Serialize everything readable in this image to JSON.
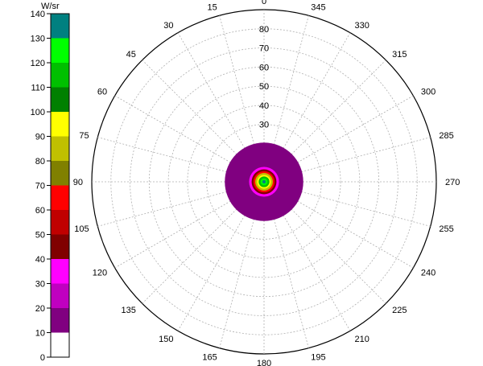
{
  "chart_data": {
    "type": "heatmap",
    "projection": "polar",
    "unit_label": "W/sr",
    "colorbar": {
      "ticks": [
        0,
        10,
        20,
        30,
        40,
        50,
        60,
        70,
        80,
        90,
        100,
        110,
        120,
        130,
        140
      ],
      "bands": [
        {
          "from": 0,
          "to": 10,
          "color": "#ffffff"
        },
        {
          "from": 10,
          "to": 20,
          "color": "#800080"
        },
        {
          "from": 20,
          "to": 30,
          "color": "#c000c0"
        },
        {
          "from": 30,
          "to": 40,
          "color": "#ff00ff"
        },
        {
          "from": 40,
          "to": 50,
          "color": "#800000"
        },
        {
          "from": 50,
          "to": 60,
          "color": "#c00000"
        },
        {
          "from": 60,
          "to": 70,
          "color": "#ff0000"
        },
        {
          "from": 70,
          "to": 80,
          "color": "#808000"
        },
        {
          "from": 80,
          "to": 90,
          "color": "#c0c000"
        },
        {
          "from": 90,
          "to": 100,
          "color": "#ffff00"
        },
        {
          "from": 100,
          "to": 110,
          "color": "#008000"
        },
        {
          "from": 110,
          "to": 120,
          "color": "#00c000"
        },
        {
          "from": 120,
          "to": 130,
          "color": "#00ff00"
        },
        {
          "from": 130,
          "to": 140,
          "color": "#008080"
        }
      ]
    },
    "angular_axis": {
      "direction": "counterclockwise",
      "zero_at": "top",
      "step": 15,
      "labels": [
        "0",
        "15",
        "30",
        "45",
        "60",
        "75",
        "90",
        "105",
        "120",
        "135",
        "150",
        "165",
        "180",
        "195",
        "210",
        "225",
        "240",
        "255",
        "270",
        "285",
        "300",
        "315",
        "330",
        "345"
      ]
    },
    "radial_axis": {
      "range": [
        0,
        90
      ],
      "ticks": [
        10,
        20,
        30,
        40,
        50,
        60,
        70,
        80,
        90
      ],
      "labels": [
        "",
        "",
        "30",
        "40",
        "50",
        "60",
        "70",
        "80",
        ""
      ]
    },
    "grid": true,
    "intensity_rings": [
      {
        "radius": 20.5,
        "value": 15
      },
      {
        "radius": 7.8,
        "value": 35
      },
      {
        "radius": 6.5,
        "value": 45
      },
      {
        "radius": 5.5,
        "value": 65
      },
      {
        "radius": 4.6,
        "value": 85
      },
      {
        "radius": 3.6,
        "value": 95
      },
      {
        "radius": 2.8,
        "value": 115
      },
      {
        "radius": 1.8,
        "value": 125
      },
      {
        "radius": 0.9,
        "value": 135
      }
    ]
  }
}
